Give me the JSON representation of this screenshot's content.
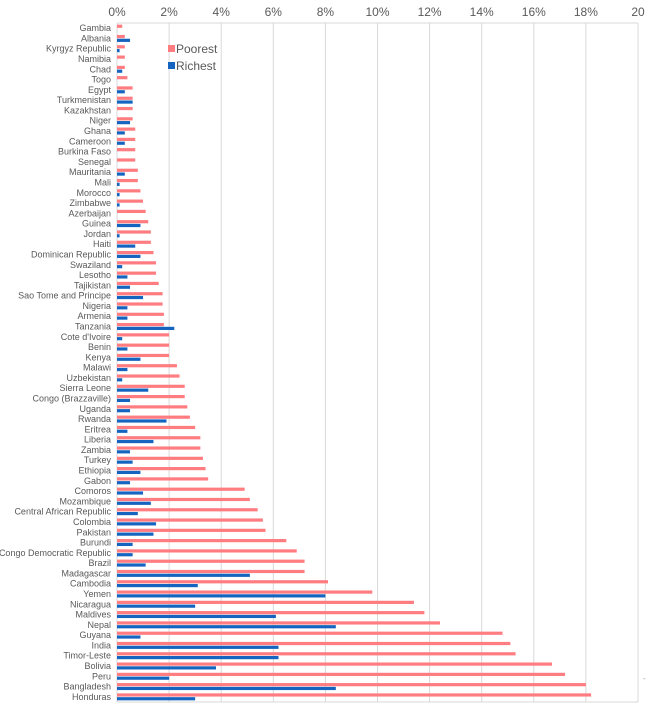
{
  "chart_data": {
    "type": "bar",
    "orientation": "horizontal",
    "title": "",
    "xlabel": "",
    "ylabel": "",
    "xlim": [
      0,
      20
    ],
    "x_ticks": [
      "0%",
      "2%",
      "4%",
      "6%",
      "8%",
      "10%",
      "12%",
      "14%",
      "16%",
      "18%",
      "20"
    ],
    "x_tick_values": [
      0,
      2,
      4,
      6,
      8,
      10,
      12,
      14,
      16,
      18,
      20
    ],
    "x_axis_position": "top",
    "grid": true,
    "legend": {
      "position": "top-left-inside",
      "entries": [
        "Poorest",
        "Richest"
      ]
    },
    "categories": [
      "Gambia",
      "Albania",
      "Kyrgyz Republic",
      "Namibia",
      "Chad",
      "Togo",
      "Egypt",
      "Turkmenistan",
      "Kazakhstan",
      "Niger",
      "Ghana",
      "Cameroon",
      "Burkina Faso",
      "Senegal",
      "Mauritania",
      "Mali",
      "Morocco",
      "Zimbabwe",
      "Azerbaijan",
      "Guinea",
      "Jordan",
      "Haiti",
      "Dominican Republic",
      "Swaziland",
      "Lesotho",
      "Tajikistan",
      "Sao Tome and Principe",
      "Nigeria",
      "Armenia",
      "Tanzania",
      "Cote d'Ivoire",
      "Benin",
      "Kenya",
      "Malawi",
      "Uzbekistan",
      "Sierra Leone",
      "Congo (Brazzaville)",
      "Uganda",
      "Rwanda",
      "Eritrea",
      "Liberia",
      "Zambia",
      "Turkey",
      "Ethiopia",
      "Gabon",
      "Comoros",
      "Mozambique",
      "Central African Republic",
      "Colombia",
      "Pakistan",
      "Burundi",
      "Congo Democratic Republic",
      "Brazil",
      "Madagascar",
      "Cambodia",
      "Yemen",
      "Nicaragua",
      "Maldives",
      "Nepal",
      "Guyana",
      "India",
      "Timor-Leste",
      "Bolivia",
      "Peru",
      "Bangladesh",
      "Honduras"
    ],
    "series": [
      {
        "name": "Poorest",
        "color": "#ff7c80",
        "values": [
          0.2,
          0.3,
          0.3,
          0.3,
          0.3,
          0.4,
          0.6,
          0.6,
          0.6,
          0.6,
          0.7,
          0.7,
          0.7,
          0.7,
          0.8,
          0.8,
          0.9,
          1.0,
          1.1,
          1.2,
          1.3,
          1.3,
          1.4,
          1.5,
          1.5,
          1.6,
          1.75,
          1.75,
          1.8,
          1.8,
          2.0,
          2.0,
          2.0,
          2.3,
          2.4,
          2.6,
          2.6,
          2.7,
          2.8,
          3.0,
          3.2,
          3.2,
          3.3,
          3.4,
          3.5,
          4.9,
          5.1,
          5.4,
          5.6,
          5.7,
          6.5,
          6.9,
          7.2,
          7.2,
          8.1,
          9.8,
          11.4,
          11.8,
          12.4,
          14.8,
          15.1,
          15.3,
          16.7,
          17.2,
          18.0,
          18.2
        ]
      },
      {
        "name": "Richest",
        "color": "#1565c0",
        "values": [
          0,
          0.5,
          0.1,
          0,
          0.2,
          0,
          0.3,
          0.6,
          0,
          0.5,
          0.3,
          0.3,
          0,
          0,
          0.3,
          0.1,
          0.1,
          0.1,
          0,
          0.9,
          0.1,
          0.7,
          0.9,
          0.2,
          0.4,
          0.5,
          1.0,
          0.4,
          0.4,
          2.2,
          0.2,
          0.4,
          0.9,
          0.4,
          0.2,
          1.2,
          0.5,
          0.5,
          1.9,
          0.4,
          1.4,
          0.5,
          0.6,
          0.9,
          0.5,
          1.0,
          1.3,
          0.8,
          1.5,
          1.4,
          0.6,
          0.6,
          1.1,
          5.1,
          3.1,
          8.0,
          3.0,
          6.1,
          8.4,
          0.9,
          6.2,
          6.2,
          3.8,
          2.0,
          8.4,
          3.0
        ]
      }
    ]
  }
}
